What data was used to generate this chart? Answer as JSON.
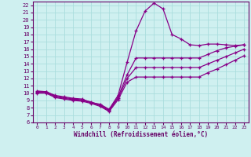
{
  "xlabel": "Windchill (Refroidissement éolien,°C)",
  "bg_color": "#cff0f0",
  "grid_color": "#aadddd",
  "line_color": "#880088",
  "spine_color": "#660066",
  "xlim": [
    -0.5,
    23.5
  ],
  "ylim": [
    6,
    22.5
  ],
  "xticks": [
    0,
    1,
    2,
    3,
    4,
    5,
    6,
    7,
    8,
    9,
    10,
    11,
    12,
    13,
    14,
    15,
    16,
    17,
    18,
    19,
    20,
    21,
    22,
    23
  ],
  "yticks": [
    6,
    7,
    8,
    9,
    10,
    11,
    12,
    13,
    14,
    15,
    16,
    17,
    18,
    19,
    20,
    21,
    22
  ],
  "line1_x": [
    0,
    1,
    2,
    3,
    4,
    5,
    6,
    7,
    8,
    9,
    10,
    11,
    12,
    13,
    14,
    15,
    16,
    17,
    18,
    19,
    20,
    21,
    22,
    23
  ],
  "line1_y": [
    10.3,
    10.2,
    9.7,
    9.5,
    9.3,
    9.2,
    8.7,
    8.5,
    7.8,
    9.7,
    14.2,
    18.5,
    21.2,
    22.3,
    21.5,
    18.0,
    17.4,
    16.6,
    16.5,
    16.7,
    16.7,
    16.6,
    16.5,
    16.6
  ],
  "line2_x": [
    0,
    1,
    2,
    3,
    4,
    5,
    6,
    7,
    8,
    9,
    10,
    11,
    12,
    13,
    14,
    15,
    16,
    17,
    18,
    19,
    20,
    21,
    22,
    23
  ],
  "line2_y": [
    10.2,
    10.2,
    9.6,
    9.4,
    9.2,
    9.1,
    8.8,
    8.4,
    7.7,
    9.5,
    12.5,
    14.8,
    14.8,
    14.8,
    14.8,
    14.8,
    14.8,
    14.8,
    14.8,
    15.3,
    15.8,
    16.2,
    16.4,
    16.6
  ],
  "line3_x": [
    0,
    1,
    2,
    3,
    4,
    5,
    6,
    7,
    8,
    9,
    10,
    11,
    12,
    13,
    14,
    15,
    16,
    17,
    18,
    19,
    20,
    21,
    22,
    23
  ],
  "line3_y": [
    10.1,
    10.1,
    9.5,
    9.3,
    9.1,
    9.0,
    8.7,
    8.3,
    7.6,
    9.3,
    12.0,
    13.5,
    13.5,
    13.5,
    13.5,
    13.5,
    13.5,
    13.5,
    13.5,
    14.0,
    14.5,
    15.0,
    15.5,
    16.0
  ],
  "line4_x": [
    0,
    1,
    2,
    3,
    4,
    5,
    6,
    7,
    8,
    9,
    10,
    11,
    12,
    13,
    14,
    15,
    16,
    17,
    18,
    19,
    20,
    21,
    22,
    23
  ],
  "line4_y": [
    10.0,
    10.0,
    9.4,
    9.2,
    9.0,
    8.9,
    8.6,
    8.2,
    7.5,
    9.1,
    11.5,
    12.2,
    12.2,
    12.2,
    12.2,
    12.2,
    12.2,
    12.2,
    12.2,
    12.8,
    13.3,
    13.9,
    14.5,
    15.1
  ]
}
